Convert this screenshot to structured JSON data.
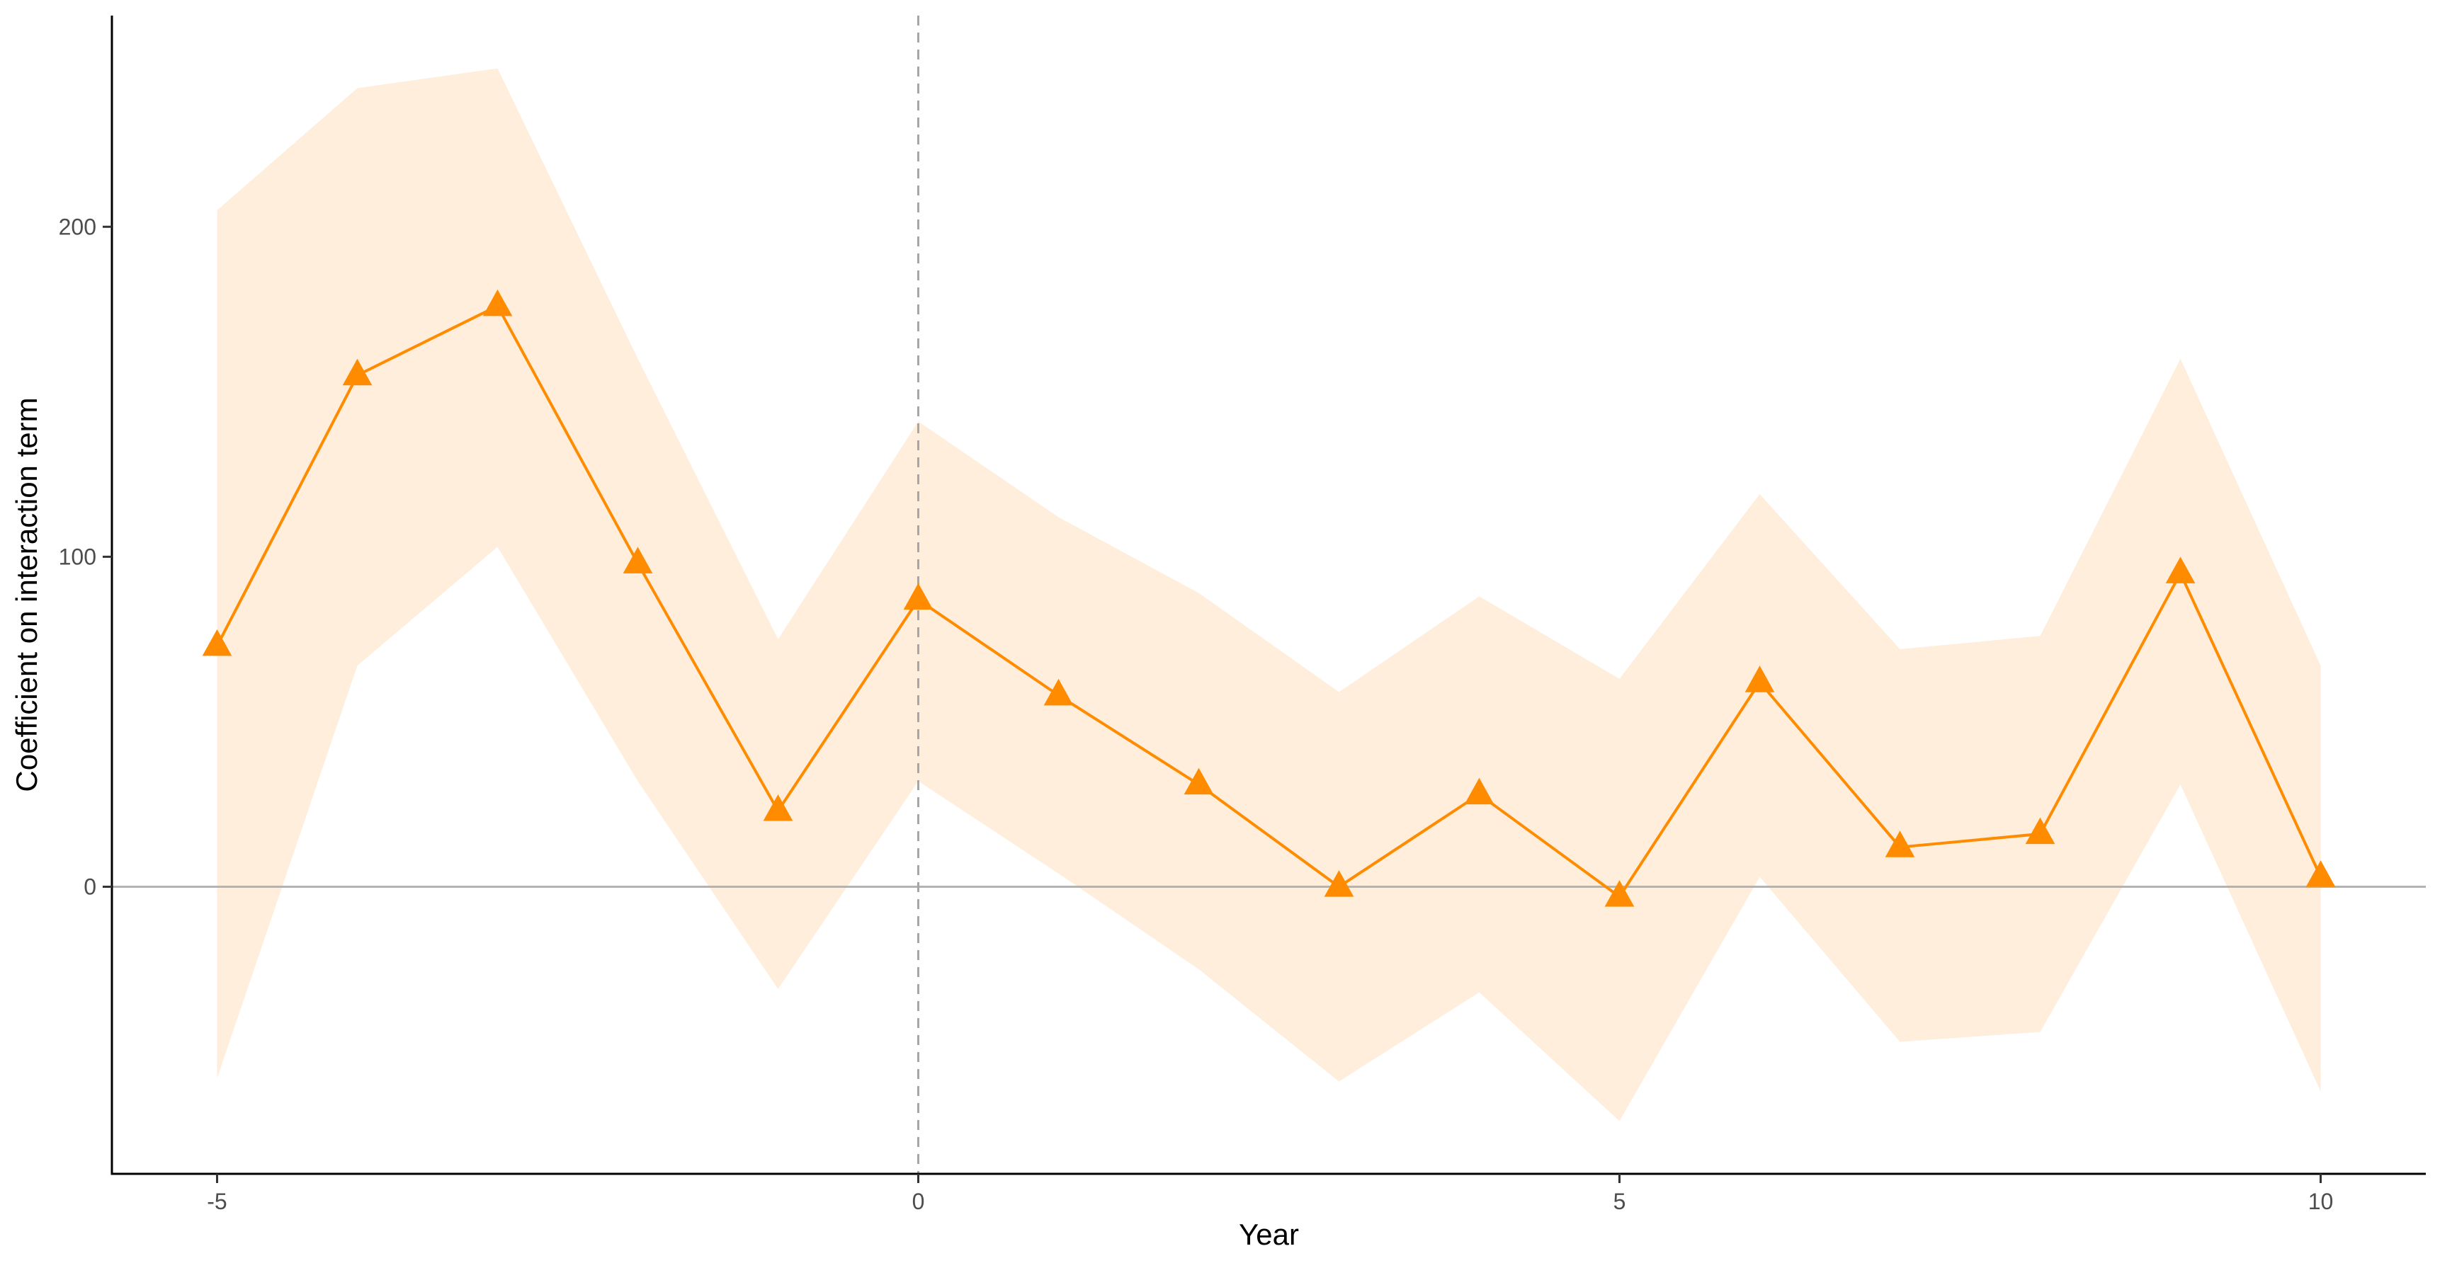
{
  "chart_data": {
    "type": "line",
    "title": "",
    "xlabel": "Year",
    "ylabel": "Coefficient on interaction term",
    "xlim": [
      -5.75,
      10.75
    ],
    "ylim": [
      -87,
      264
    ],
    "x_ticks": [
      -5,
      0,
      5,
      10
    ],
    "x_tick_labels": [
      "-5",
      "0",
      "5",
      "10"
    ],
    "y_ticks": [
      0,
      100,
      200
    ],
    "y_tick_labels": [
      "0",
      "100",
      "200"
    ],
    "grid": false,
    "reference_lines": {
      "horizontal": 0,
      "vertical": 0
    },
    "x": [
      -5,
      -4,
      -3,
      -2,
      -1,
      0,
      1,
      2,
      3,
      4,
      5,
      6,
      7,
      8,
      9,
      10
    ],
    "series": [
      {
        "name": "Coefficient",
        "values": [
          73,
          155,
          176,
          98,
          23,
          87,
          58,
          31,
          0,
          28,
          -3,
          62,
          12,
          16,
          95,
          3
        ],
        "ci_lower": [
          -58,
          67,
          103,
          32,
          -31,
          32,
          4,
          -25,
          -59,
          -32,
          -71,
          3,
          -47,
          -44,
          31,
          -62
        ],
        "ci_upper": [
          205,
          242,
          248,
          160,
          75,
          141,
          112,
          89,
          59,
          88,
          63,
          119,
          72,
          76,
          160,
          67
        ]
      }
    ],
    "colors": {
      "line": "#ff8c00",
      "marker": "#ff8c00",
      "ribbon": "#feeedb",
      "zero_line": "#b3b3b3",
      "vline": "#a6a6a6",
      "axis": "#000000"
    }
  }
}
